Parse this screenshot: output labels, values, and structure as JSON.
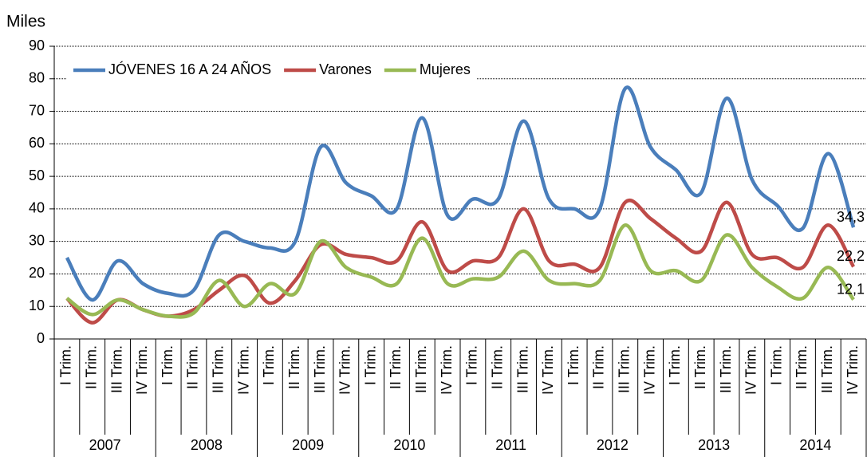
{
  "chart_data": {
    "type": "line",
    "y_axis_title": "Miles",
    "categories": [
      "I Trim.",
      "II Trim.",
      "III Trim.",
      "IV Trim.",
      "I Trim.",
      "II Trim.",
      "III Trim.",
      "IV Trim.",
      "I Trim.",
      "II Trim.",
      "III Trim.",
      "IV Trim.",
      "I Trim.",
      "II Trim.",
      "III Trim.",
      "IV Trim.",
      "I Trim.",
      "II Trim.",
      "III Trim.",
      "IV Trim.",
      "I Trim.",
      "II Trim.",
      "III Trim.",
      "IV Trim.",
      "I Trim.",
      "II Trim.",
      "III Trim.",
      "IV Trim.",
      "I Trim.",
      "II Trim.",
      "III Trim.",
      "IV Trim."
    ],
    "years": [
      "2007",
      "2008",
      "2009",
      "2010",
      "2011",
      "2012",
      "2013",
      "2014"
    ],
    "series": [
      {
        "name": "JÓVENES 16 A 24 AÑOS",
        "color": "#4a7ebb",
        "values": [
          25,
          12,
          24,
          17,
          14,
          15,
          32,
          30,
          28,
          30,
          59,
          48,
          44,
          40,
          68,
          38,
          43,
          43,
          67,
          43,
          40,
          40,
          77,
          59,
          52,
          45,
          74,
          49,
          41,
          34,
          57,
          34.3
        ],
        "value_labels": [
          null,
          null,
          null,
          null,
          null,
          null,
          null,
          null,
          null,
          null,
          null,
          null,
          null,
          null,
          null,
          null,
          null,
          null,
          null,
          null,
          null,
          null,
          null,
          null,
          null,
          null,
          null,
          null,
          null,
          null,
          null,
          "34,3"
        ]
      },
      {
        "name": "Varones",
        "color": "#be4b48",
        "values": [
          12.5,
          5,
          12,
          9,
          7,
          9,
          15,
          19.5,
          11,
          18,
          29,
          26,
          25,
          24,
          36,
          21,
          24,
          25,
          40,
          24,
          23,
          22,
          42,
          37,
          31,
          27,
          42,
          26,
          25,
          22,
          35,
          22.2
        ],
        "value_labels": [
          null,
          null,
          null,
          null,
          null,
          null,
          null,
          null,
          null,
          null,
          null,
          null,
          null,
          null,
          null,
          null,
          null,
          null,
          null,
          null,
          null,
          null,
          null,
          null,
          null,
          null,
          null,
          null,
          null,
          null,
          null,
          "22,2"
        ]
      },
      {
        "name": "Mujeres",
        "color": "#98b954",
        "values": [
          12.5,
          7.5,
          12,
          9,
          7,
          8,
          18,
          10,
          17,
          14,
          30,
          22,
          19,
          17,
          31,
          17,
          18.5,
          19,
          27,
          18,
          17,
          18,
          35,
          21,
          21,
          18,
          32,
          22,
          16,
          12.5,
          22,
          12.1
        ],
        "value_labels": [
          null,
          null,
          null,
          null,
          null,
          null,
          null,
          null,
          null,
          null,
          null,
          null,
          null,
          null,
          null,
          null,
          null,
          null,
          null,
          null,
          null,
          null,
          null,
          null,
          null,
          null,
          null,
          null,
          null,
          null,
          null,
          "12,1"
        ]
      }
    ],
    "ylim": [
      0,
      90
    ],
    "yticks": [
      0,
      10,
      20,
      30,
      40,
      50,
      60,
      70,
      80,
      90
    ],
    "grid": true,
    "smooth": true,
    "legend": "top-left"
  }
}
